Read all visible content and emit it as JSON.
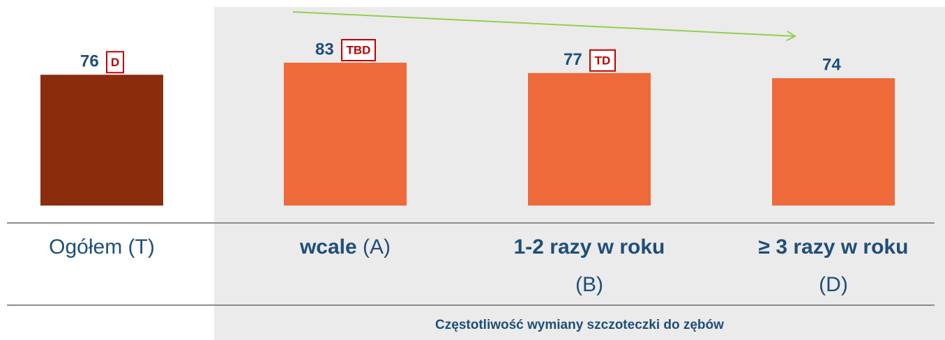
{
  "chart_data": {
    "type": "bar",
    "xlabel": "Częstotliwość wymiany szczoteczki do zębów",
    "categories": [
      {
        "name": "Ogółem",
        "code": "(T)"
      },
      {
        "name": "wcale",
        "code": "(A)"
      },
      {
        "name": "1-2 razy w roku",
        "code": "(B)"
      },
      {
        "name": "≥ 3 razy w roku",
        "code": "(D)"
      }
    ],
    "values": [
      76,
      83,
      77,
      74
    ],
    "colors": [
      "#8b2c0c",
      "#ee6a3a",
      "#ee6a3a",
      "#ee6a3a"
    ],
    "badges": [
      "D",
      "TBD",
      "TD",
      null
    ],
    "highlight": [
      false,
      true,
      true,
      true
    ]
  }
}
